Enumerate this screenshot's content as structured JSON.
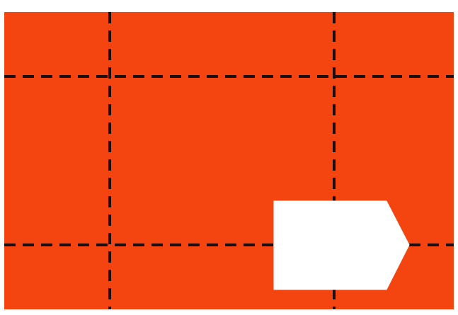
{
  "colors": {
    "panel": "#f4440f",
    "fold_line": "#1a0f0c",
    "cutout": "#ffffff",
    "background": "#ffffff"
  },
  "figure": {
    "shape": "rectangular sheet with dashed fold lines and a white pointed-tab cutout",
    "fold_line_style": "dashed",
    "vertical_fold_lines": 2,
    "horizontal_fold_lines": 2,
    "cutout_shape": "pentagon-tab"
  }
}
